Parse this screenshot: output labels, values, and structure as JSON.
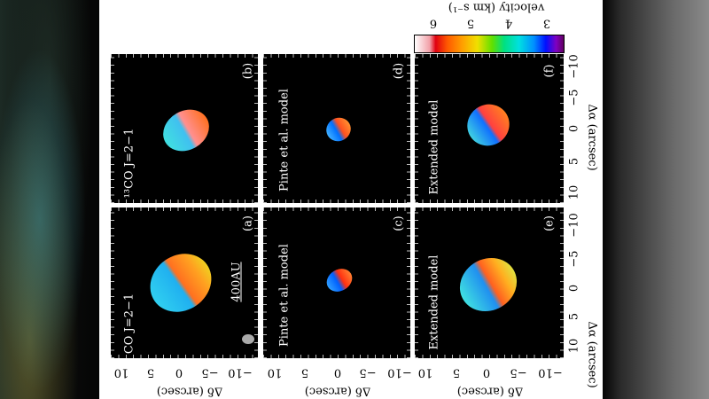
{
  "colorbar": {
    "label": "velocity (km s⁻¹)",
    "ticks": [
      "6",
      "5",
      "4",
      "3"
    ]
  },
  "axes": {
    "dec_label": "Δδ (arcsec)",
    "ra_label": "Δα (arcsec)",
    "ticks": [
      "10",
      "5",
      "0",
      "−5",
      "−10"
    ]
  },
  "panels": {
    "a": {
      "tag": "(a)",
      "title": "CO J=2−1",
      "scale": "400AU"
    },
    "b": {
      "tag": "(b)",
      "title": "¹³CO J=2−1"
    },
    "c": {
      "tag": "(c)",
      "title": "Pinte et al. model"
    },
    "d": {
      "tag": "(d)",
      "title": "Pinte et al. model"
    },
    "e": {
      "tag": "(e)",
      "title": "Extended model"
    },
    "f": {
      "tag": "(f)",
      "title": "Extended model"
    }
  },
  "colors": {
    "blue_side": "#20c0e8",
    "red_side": "#ff8020"
  }
}
